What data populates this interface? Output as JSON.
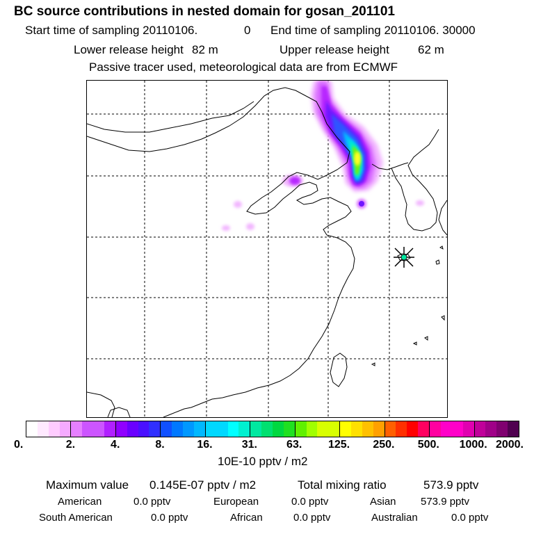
{
  "title": "BC  source contributions in nested domain for gosan_201101",
  "sampling": {
    "start_label": "Start time of sampling 20110106.",
    "start_hour": "0",
    "end_label": "End time of sampling 20110106. 30000"
  },
  "release": {
    "lower_label": "Lower release height",
    "lower_value": "82 m",
    "upper_label": "Upper release height",
    "upper_value": "62 m"
  },
  "note": "Passive tracer used, meteorological data are from ECMWF",
  "colorbar": {
    "unit_label": "10E-10 pptv / m2",
    "ticks": [
      "0.",
      "2.",
      "4.",
      "8.",
      "16.",
      "31.",
      "63.",
      "125.",
      "250.",
      "500.",
      "1000.",
      "2000."
    ],
    "colors": [
      "#ffffff",
      "#ffe9ff",
      "#ffccff",
      "#f5aaff",
      "#e680ff",
      "#cc55ff",
      "#b020ff",
      "#9000ff",
      "#6a00ff",
      "#4a10ff",
      "#3030ff",
      "#1050ff",
      "#0078ff",
      "#0098ff",
      "#00b8ff",
      "#00d8ff",
      "#00ffff",
      "#00f0d0",
      "#00e8a0",
      "#00e070",
      "#00d840",
      "#20e020",
      "#60f000",
      "#a0ff00",
      "#d8ff00",
      "#ffff00",
      "#ffe000",
      "#ffc000",
      "#ffa000",
      "#ff6000",
      "#ff3000",
      "#ff0000",
      "#ff0060",
      "#ff00a0",
      "#ff00c8",
      "#e000b0",
      "#c0009a",
      "#a00088",
      "#800070",
      "#500050"
    ]
  },
  "stats": {
    "max_label": "Maximum value",
    "max_value": "0.145E-07 pptv / m2",
    "total_label": "Total mixing ratio",
    "total_value": "573.9 pptv",
    "regions": [
      {
        "name": "American",
        "value": "0.0 pptv"
      },
      {
        "name": "European",
        "value": "0.0 pptv"
      },
      {
        "name": "Asian",
        "value": "573.9 pptv"
      },
      {
        "name": "South American",
        "value": "0.0 pptv"
      },
      {
        "name": "African",
        "value": "0.0 pptv"
      },
      {
        "name": "Australian",
        "value": "0.0 pptv"
      }
    ]
  },
  "map": {
    "receptor_marker": "star-icon",
    "plume_colors": [
      "#f2b6ff",
      "#d86cff",
      "#b726ff",
      "#6f14ff",
      "#2f54ff",
      "#00c0ff",
      "#00f0c8",
      "#7cf000",
      "#ffff22"
    ]
  }
}
